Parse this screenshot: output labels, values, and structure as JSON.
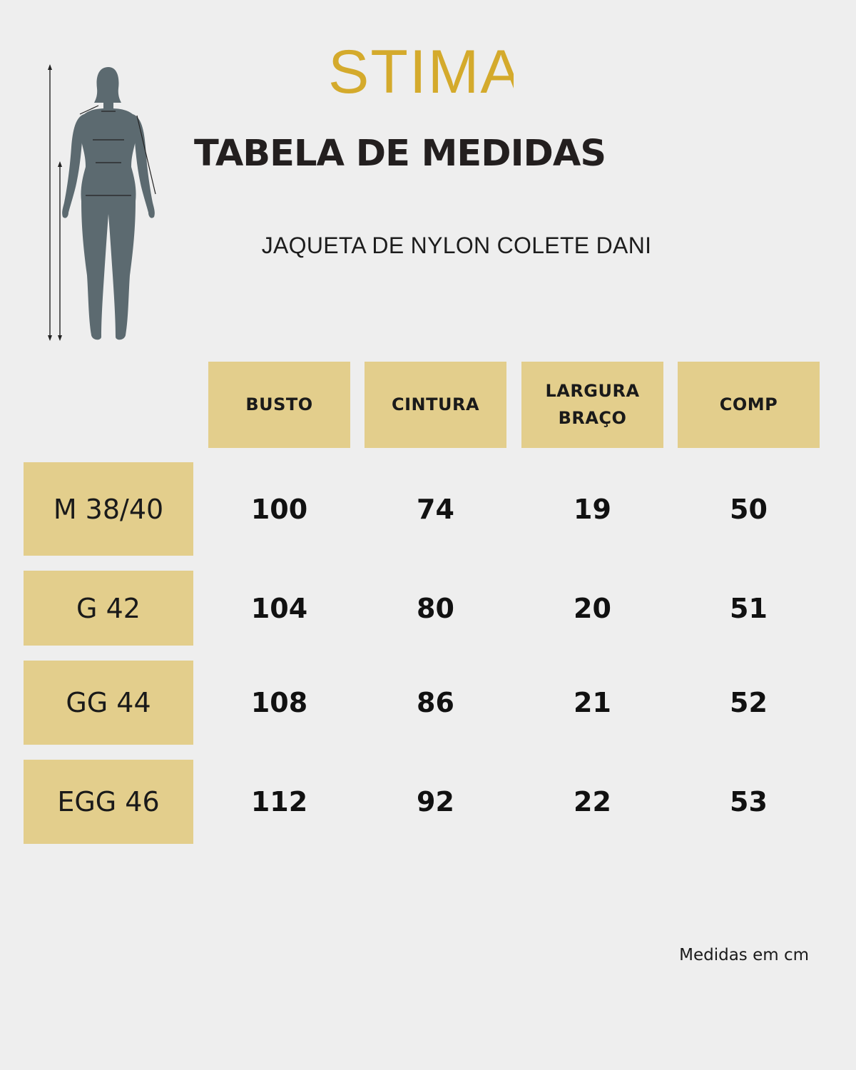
{
  "brand": {
    "logo_text": "STIMA",
    "logo_color": "#d4aa2c"
  },
  "title": "TABELA DE MEDIDAS",
  "subtitle": "JAQUETA DE NYLON COLETE DANI",
  "illustration": {
    "icon": "body-measurement-silhouette-icon",
    "color": "#5c6a70"
  },
  "table": {
    "header_color": "#e3ce8c",
    "columns": [
      "BUSTO",
      "CINTURA",
      "LARGURA\nBRAÇO",
      "COMP"
    ],
    "rows": [
      {
        "size": "M 38/40",
        "values": [
          "100",
          "74",
          "19",
          "50"
        ]
      },
      {
        "size": "G 42",
        "values": [
          "104",
          "80",
          "20",
          "51"
        ]
      },
      {
        "size": "GG 44",
        "values": [
          "108",
          "86",
          "21",
          "52"
        ]
      },
      {
        "size": "EGG 46",
        "values": [
          "112",
          "92",
          "22",
          "53"
        ]
      }
    ]
  },
  "footnote": "Medidas em cm"
}
